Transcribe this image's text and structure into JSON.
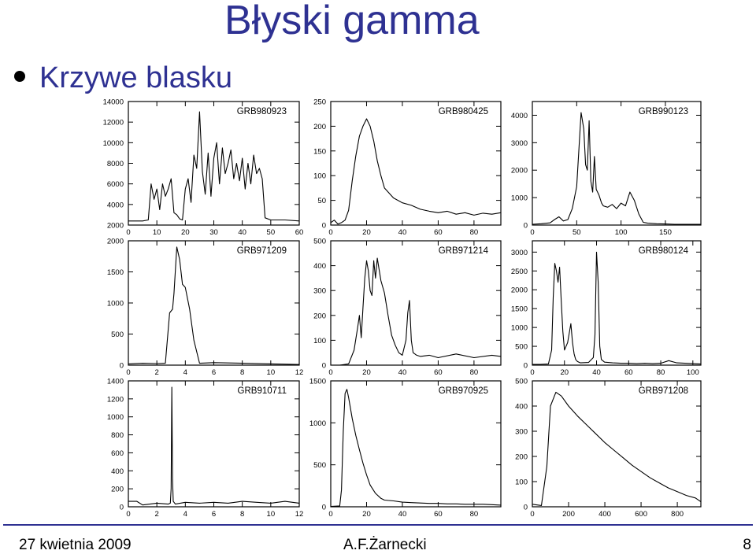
{
  "slide": {
    "title": "Błyski gamma",
    "subtitle": "Krzywe blasku"
  },
  "footer": {
    "date": "27 kwietnia 2009",
    "author": "A.F.Żarnecki",
    "page": "8"
  },
  "colors": {
    "title": "#2e3192",
    "footer_rule": "#2e3192",
    "curve": "#000000"
  },
  "chart_data": [
    {
      "type": "line",
      "title": "GRB980923",
      "xlim": [
        0,
        60
      ],
      "ylim": [
        2000,
        14000
      ],
      "xticks": [
        0,
        10,
        20,
        30,
        40,
        50,
        60
      ],
      "yticks": [
        2000,
        4000,
        6000,
        8000,
        10000,
        12000,
        14000
      ],
      "series": [
        {
          "x": [
            0,
            2,
            5,
            7,
            8,
            9,
            10,
            11,
            12,
            13,
            14,
            15,
            16,
            17,
            18,
            19,
            20,
            21,
            22,
            23,
            24,
            25,
            26,
            27,
            28,
            29,
            30,
            31,
            32,
            33,
            34,
            35,
            36,
            37,
            38,
            39,
            40,
            41,
            42,
            43,
            44,
            45,
            46,
            47,
            48,
            50,
            55,
            60
          ],
          "y": [
            2400,
            2400,
            2400,
            2500,
            6000,
            4500,
            5500,
            3500,
            6000,
            4800,
            5500,
            6500,
            3200,
            3000,
            2600,
            2500,
            5500,
            6500,
            4200,
            8800,
            7500,
            13000,
            7200,
            5000,
            9000,
            4800,
            8500,
            10000,
            6000,
            9500,
            7000,
            8000,
            9300,
            6500,
            8000,
            6300,
            8500,
            5500,
            8000,
            6000,
            8800,
            7000,
            7500,
            6500,
            2700,
            2500,
            2500,
            2400
          ]
        }
      ]
    },
    {
      "type": "line",
      "title": "GRB980425",
      "xlim": [
        0,
        95
      ],
      "ylim": [
        0,
        250
      ],
      "xticks": [
        0,
        20,
        40,
        60,
        80
      ],
      "yticks": [
        0,
        50,
        100,
        150,
        200,
        250
      ],
      "series": [
        {
          "x": [
            0,
            2,
            4,
            6,
            8,
            10,
            12,
            14,
            16,
            18,
            20,
            22,
            24,
            26,
            28,
            30,
            35,
            40,
            45,
            50,
            55,
            60,
            65,
            70,
            75,
            80,
            85,
            90,
            95
          ],
          "y": [
            5,
            10,
            2,
            5,
            10,
            30,
            90,
            140,
            180,
            200,
            215,
            200,
            170,
            130,
            100,
            75,
            55,
            45,
            40,
            32,
            28,
            25,
            28,
            22,
            25,
            20,
            24,
            22,
            25
          ]
        }
      ]
    },
    {
      "type": "line",
      "title": "GRB990123",
      "xlim": [
        0,
        190
      ],
      "ylim": [
        0,
        4500
      ],
      "xticks": [
        0,
        50,
        100,
        150
      ],
      "yticks": [
        0,
        1000,
        2000,
        3000,
        4000
      ],
      "series": [
        {
          "x": [
            0,
            10,
            20,
            25,
            30,
            35,
            40,
            45,
            50,
            55,
            58,
            60,
            62,
            64,
            66,
            68,
            70,
            72,
            75,
            78,
            80,
            85,
            90,
            95,
            100,
            105,
            110,
            115,
            120,
            125,
            130,
            140,
            150,
            160,
            170,
            180,
            190
          ],
          "y": [
            30,
            50,
            80,
            200,
            300,
            150,
            200,
            600,
            1400,
            4100,
            3500,
            2200,
            2000,
            3800,
            1600,
            1200,
            2500,
            1300,
            1100,
            800,
            700,
            650,
            750,
            600,
            800,
            700,
            1200,
            900,
            400,
            100,
            70,
            50,
            40,
            30,
            30,
            30,
            30
          ]
        }
      ]
    },
    {
      "type": "line",
      "title": "GRB971209",
      "xlim": [
        0,
        12
      ],
      "ylim": [
        0,
        2000
      ],
      "xticks": [
        0,
        2,
        4,
        6,
        8,
        10,
        12
      ],
      "yticks": [
        0,
        500,
        1000,
        1500,
        2000
      ],
      "series": [
        {
          "x": [
            0,
            1,
            2,
            2.6,
            2.9,
            3.1,
            3.2,
            3.4,
            3.6,
            3.8,
            4.0,
            4.3,
            4.6,
            5.0,
            6,
            8,
            10,
            12
          ],
          "y": [
            20,
            30,
            25,
            30,
            840,
            900,
            1150,
            1900,
            1700,
            1300,
            1250,
            900,
            400,
            30,
            40,
            30,
            20,
            10
          ]
        }
      ]
    },
    {
      "type": "line",
      "title": "GRB971214",
      "xlim": [
        0,
        95
      ],
      "ylim": [
        0,
        500
      ],
      "xticks": [
        0,
        20,
        40,
        60,
        80
      ],
      "yticks": [
        0,
        100,
        200,
        300,
        400,
        500
      ],
      "series": [
        {
          "x": [
            0,
            5,
            10,
            13,
            15,
            16,
            17,
            18,
            19,
            20,
            21,
            22,
            23,
            24,
            25,
            26,
            28,
            30,
            32,
            34,
            36,
            38,
            40,
            42,
            43,
            44,
            45,
            46,
            48,
            50,
            55,
            60,
            70,
            80,
            90,
            95
          ],
          "y": [
            0,
            0,
            5,
            60,
            150,
            200,
            110,
            230,
            350,
            420,
            380,
            300,
            280,
            420,
            350,
            430,
            340,
            290,
            200,
            120,
            80,
            50,
            40,
            100,
            210,
            260,
            100,
            50,
            40,
            35,
            40,
            30,
            45,
            30,
            40,
            35
          ]
        }
      ]
    },
    {
      "type": "line",
      "title": "GRB980124",
      "xlim": [
        0,
        105
      ],
      "ylim": [
        0,
        3300
      ],
      "xticks": [
        0,
        20,
        40,
        60,
        80,
        100
      ],
      "yticks": [
        0,
        500,
        1000,
        1500,
        2000,
        2500,
        3000
      ],
      "series": [
        {
          "x": [
            0,
            5,
            10,
            12,
            13,
            14,
            15,
            16,
            17,
            18,
            19,
            20,
            22,
            24,
            25,
            26,
            27,
            28,
            29,
            30,
            35,
            38,
            39,
            40,
            41,
            42,
            43,
            45,
            50,
            55,
            60,
            65,
            70,
            75,
            80,
            85,
            90,
            95,
            100,
            105
          ],
          "y": [
            20,
            20,
            30,
            400,
            1800,
            2700,
            2500,
            2200,
            2600,
            1700,
            900,
            400,
            600,
            1100,
            600,
            300,
            150,
            100,
            80,
            60,
            70,
            200,
            800,
            3000,
            2200,
            500,
            150,
            80,
            60,
            50,
            50,
            40,
            50,
            40,
            50,
            120,
            60,
            50,
            40,
            30
          ]
        }
      ]
    },
    {
      "type": "line",
      "title": "GRB910711",
      "xlim": [
        0,
        12
      ],
      "ylim": [
        0,
        1400
      ],
      "xticks": [
        0,
        2,
        4,
        6,
        8,
        10,
        12
      ],
      "yticks": [
        0,
        200,
        400,
        600,
        800,
        1000,
        1200,
        1400
      ],
      "series": [
        {
          "x": [
            0,
            0.6,
            1,
            2,
            2.8,
            2.95,
            3.0,
            3.05,
            3.1,
            3.15,
            3.3,
            4,
            5,
            6,
            7,
            8,
            9,
            10,
            11,
            12
          ],
          "y": [
            60,
            60,
            20,
            40,
            30,
            40,
            200,
            1330,
            300,
            60,
            30,
            50,
            40,
            50,
            40,
            60,
            50,
            40,
            60,
            40
          ]
        }
      ]
    },
    {
      "type": "line",
      "title": "GRB970925",
      "xlim": [
        0,
        95
      ],
      "ylim": [
        0,
        1500
      ],
      "xticks": [
        0,
        20,
        40,
        60,
        80
      ],
      "yticks": [
        0,
        500,
        1000,
        1500
      ],
      "series": [
        {
          "x": [
            0,
            5,
            6,
            7,
            8,
            9,
            10,
            12,
            14,
            16,
            18,
            20,
            22,
            25,
            28,
            30,
            35,
            40,
            45,
            50,
            55,
            60,
            65,
            70,
            75,
            80,
            85,
            90,
            95
          ],
          "y": [
            5,
            10,
            200,
            900,
            1350,
            1400,
            1300,
            1050,
            850,
            680,
            520,
            380,
            260,
            160,
            100,
            80,
            70,
            55,
            50,
            45,
            40,
            40,
            35,
            35,
            30,
            30,
            30,
            25,
            20
          ]
        }
      ]
    },
    {
      "type": "line",
      "title": "GRB971208",
      "xlim": [
        0,
        930
      ],
      "ylim": [
        0,
        500
      ],
      "xticks": [
        0,
        200,
        400,
        600,
        800
      ],
      "yticks": [
        0,
        100,
        200,
        300,
        400,
        500
      ],
      "series": [
        {
          "x": [
            0,
            50,
            80,
            100,
            130,
            160,
            200,
            250,
            300,
            350,
            400,
            450,
            500,
            550,
            600,
            650,
            700,
            750,
            800,
            850,
            900,
            930
          ],
          "y": [
            10,
            5,
            160,
            400,
            455,
            440,
            400,
            360,
            325,
            290,
            255,
            225,
            195,
            165,
            140,
            115,
            95,
            75,
            60,
            45,
            35,
            20
          ]
        }
      ]
    }
  ]
}
